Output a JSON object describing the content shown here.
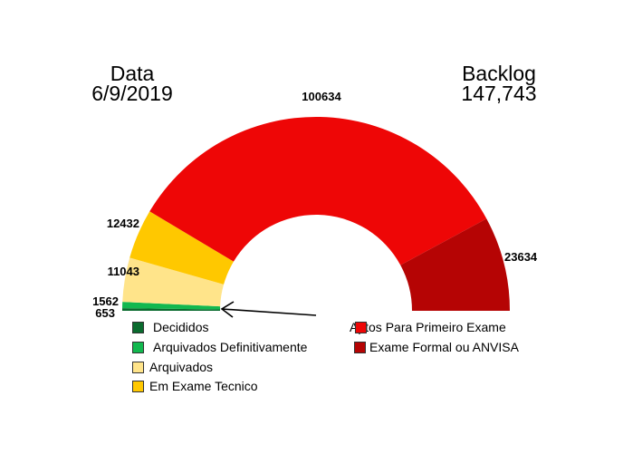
{
  "header": {
    "date_label": "Data",
    "date_value": "6/9/2019",
    "backlog_label": "Backlog",
    "backlog_value": "147,743"
  },
  "chart_data": {
    "type": "pie",
    "variant": "half-donut",
    "categories": [
      "Decididos",
      "Arquivados Definitivamente",
      "Arquivados",
      "Em Exame Tecnico",
      "Aptos Para Primeiro Exame",
      "Exame Formal ou ANVISA"
    ],
    "values": [
      653,
      1562,
      11043,
      12432,
      100634,
      23634
    ],
    "colors": [
      "#0a6b2e",
      "#12b84f",
      "#ffe48a",
      "#ffc800",
      "#ee0606",
      "#b50404"
    ],
    "data_labels": [
      "653",
      "1562",
      "11043",
      "12432",
      "100634",
      "23634"
    ],
    "legend_placement": "bottom",
    "annotation": "arrow pointing to Decididos / Arquivados Definitivamente slices"
  }
}
